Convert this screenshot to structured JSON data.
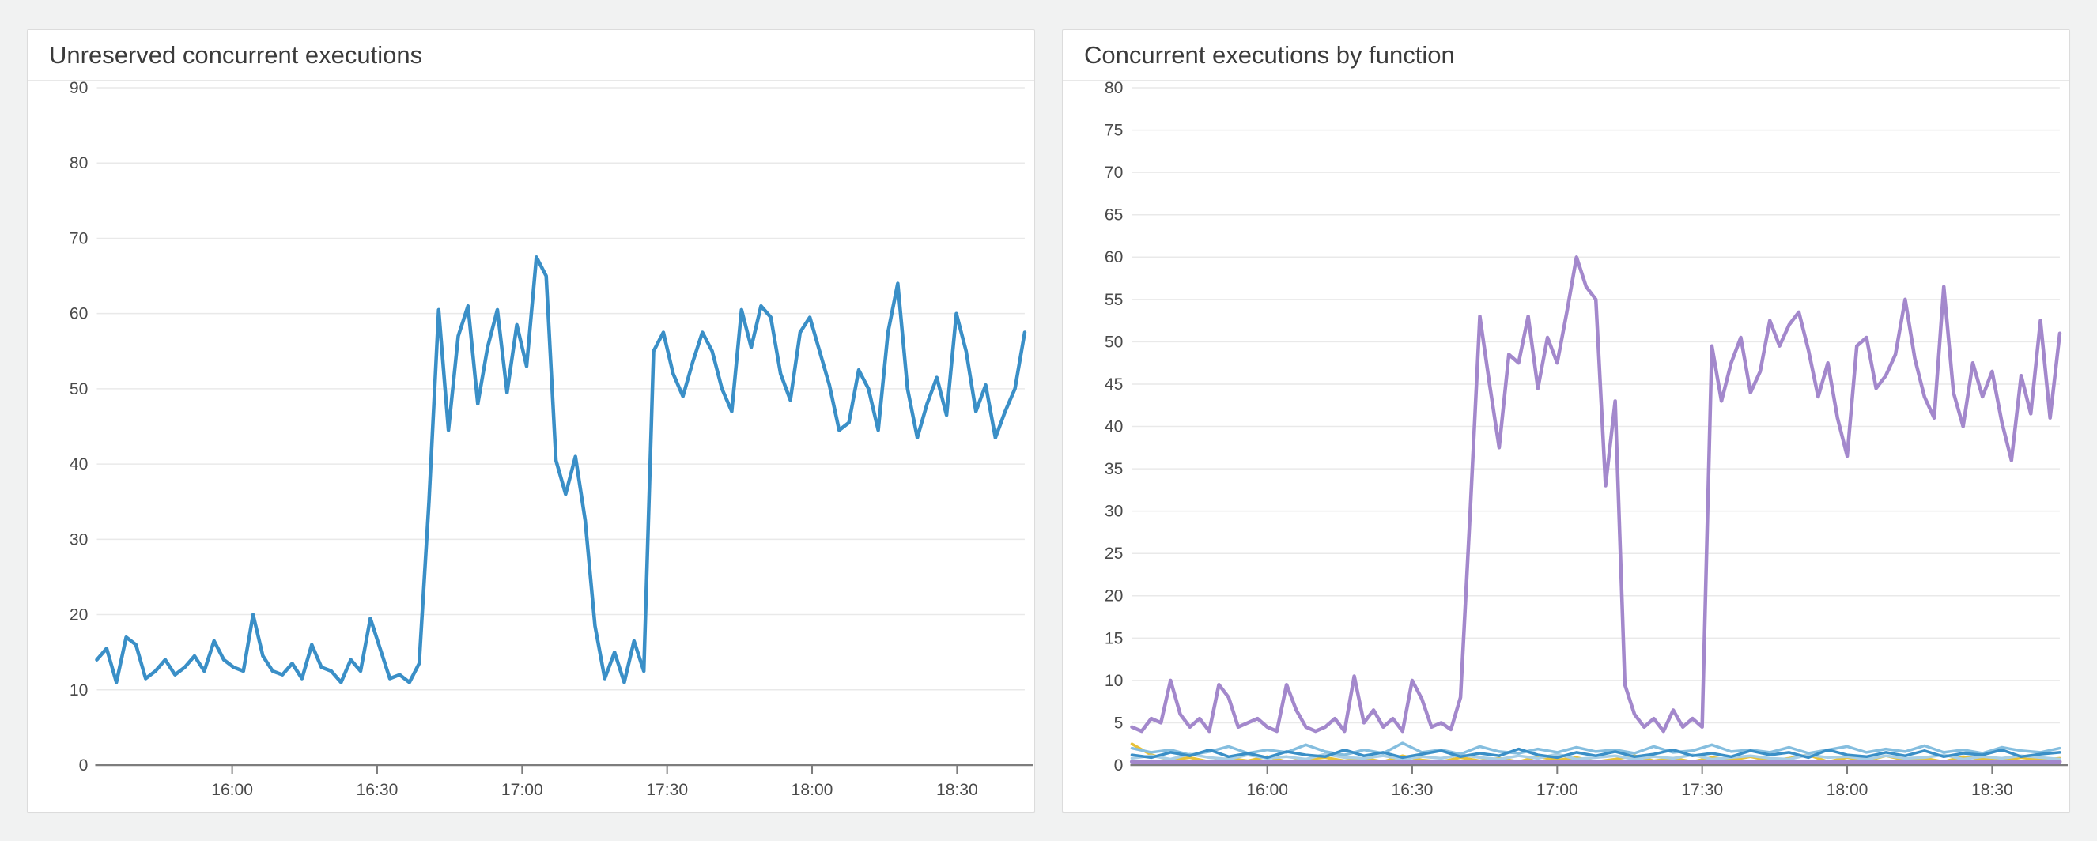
{
  "page": {
    "background": "#f1f2f2"
  },
  "panels": [
    {
      "title": "Unreserved concurrent executions"
    },
    {
      "title": "Concurrent executions by function"
    }
  ],
  "chart_data": [
    {
      "type": "line",
      "title": "Unreserved concurrent executions",
      "xlabel": "",
      "ylabel": "",
      "ylim": [
        0,
        90
      ],
      "y_tick_step": 10,
      "y_tick_labels": [
        "90",
        "80",
        "70",
        "60",
        "50",
        "40",
        "30",
        "20",
        "10",
        "0"
      ],
      "x_tick_labels": [
        "16:00",
        "16:30",
        "17:00",
        "17:30",
        "18:00",
        "18:30"
      ],
      "x_time_start": "15:32",
      "x_step_min": 2,
      "x_point_count": 97,
      "grid": true,
      "legend": "none",
      "grid_color": "#e9e9e9",
      "axis_color": "#7d7d7d",
      "label_color": "#4a4a4a",
      "series": [
        {
          "name": "unreserved-concurrent-executions",
          "color": "#3a8fc7",
          "width": 4.5,
          "values": [
            14,
            15.5,
            11,
            17,
            16,
            11.5,
            12.5,
            14,
            12,
            13,
            14.5,
            12.5,
            16.5,
            14,
            13,
            12.5,
            20,
            14.5,
            12.5,
            12,
            13.5,
            11.5,
            16,
            13,
            12.5,
            11,
            14,
            12.5,
            19.5,
            15.5,
            11.5,
            12,
            11,
            13.5,
            35,
            60.5,
            44.5,
            57,
            61,
            48,
            55.5,
            60.5,
            49.5,
            58.5,
            53,
            67.5,
            65,
            40.5,
            36,
            41,
            32.5,
            18.5,
            11.5,
            15,
            11,
            16.5,
            12.5,
            55,
            57.5,
            52,
            49,
            53.5,
            57.5,
            55,
            50,
            47,
            60.5,
            55.5,
            61,
            59.5,
            52,
            48.5,
            57.5,
            59.5,
            55,
            50.5,
            44.5,
            45.5,
            52.5,
            50,
            44.5,
            57.5,
            64,
            50,
            43.5,
            48,
            51.5,
            46.5,
            60,
            55,
            47,
            50.5,
            43.5,
            47,
            50,
            57.5
          ]
        }
      ]
    },
    {
      "type": "line",
      "title": "Concurrent executions by function",
      "xlabel": "",
      "ylabel": "",
      "ylim": [
        0,
        80
      ],
      "y_tick_step": 5,
      "y_tick_labels": [
        "80",
        "75",
        "70",
        "65",
        "60",
        "55",
        "50",
        "45",
        "40",
        "35",
        "30",
        "25",
        "20",
        "15",
        "10",
        "5",
        "0"
      ],
      "x_tick_labels": [
        "16:00",
        "16:30",
        "17:00",
        "17:30",
        "18:00",
        "18:30"
      ],
      "x_time_start": "15:32",
      "x_step_min": 2,
      "x_point_count": 97,
      "grid": true,
      "legend": "none",
      "grid_color": "#e9e9e9",
      "axis_color": "#7d7d7d",
      "label_color": "#4a4a4a",
      "series": [
        {
          "name": "function-yellow",
          "color": "#e7c23b",
          "width": 3.5,
          "values": [
            2.5,
            1.2,
            0.6,
            0.9,
            0.4,
            0.8,
            0.5,
            1,
            0.4,
            0.7,
            0.9,
            0.5,
            0.8,
            0.4,
            1.1,
            0.6,
            0.4,
            0.9,
            0.5,
            0.8,
            0.4,
            1,
            0.6,
            0.9,
            0.4,
            0.7,
            1.1,
            0.5,
            0.8,
            0.4,
            0.9,
            0.6,
            1,
            0.5,
            0.8,
            1.2,
            0.4,
            0.9,
            0.5,
            1.1,
            0.6,
            0.8,
            0.4,
            1,
            0.7,
            0.5,
            0.9,
            0.6,
            0.8
          ]
        },
        {
          "name": "function-pale-blue",
          "color": "#a9cfe5",
          "width": 3.5,
          "values": [
            0.8,
            1.1,
            0.7,
            1.3,
            0.9,
            0.7,
            1.2,
            0.8,
            1,
            0.7,
            1.3,
            0.9,
            0.8,
            1.1,
            0.7,
            1,
            0.8,
            1.2,
            0.9,
            0.7,
            1.1,
            0.8,
            1.3,
            0.7,
            0.9,
            1.1,
            0.7,
            1,
            0.8,
            1.2,
            0.7,
            0.9,
            1.1,
            0.8,
            0.7,
            1.2,
            0.9,
            1,
            0.7,
            1.1,
            0.8,
            0.9,
            1.2,
            0.7,
            1,
            0.8,
            1.1,
            0.9,
            0.7
          ]
        },
        {
          "name": "function-light-blue",
          "color": "#85bedf",
          "width": 3.5,
          "values": [
            2,
            1.5,
            1.8,
            1.2,
            1.6,
            2.2,
            1.4,
            1.8,
            1.5,
            2.4,
            1.6,
            1.2,
            1.8,
            1.4,
            2.6,
            1.5,
            1.8,
            1.3,
            2.2,
            1.6,
            1.4,
            1.9,
            1.5,
            2.1,
            1.6,
            1.8,
            1.4,
            2.2,
            1.5,
            1.7,
            2.4,
            1.6,
            1.8,
            1.5,
            2.1,
            1.4,
            1.8,
            2.2,
            1.5,
            1.9,
            1.6,
            2.3,
            1.5,
            1.8,
            1.4,
            2.1,
            1.7,
            1.5,
            2
          ]
        },
        {
          "name": "function-blue",
          "color": "#3a8fc7",
          "width": 3.5,
          "values": [
            1.2,
            0.9,
            1.5,
            1.1,
            1.8,
            1,
            1.4,
            0.9,
            1.6,
            1.2,
            1,
            1.8,
            1.1,
            1.5,
            0.9,
            1.3,
            1.7,
            1,
            1.4,
            1.1,
            1.9,
            1.2,
            0.9,
            1.5,
            1.1,
            1.6,
            1,
            1.3,
            1.8,
            1.1,
            1.4,
            1,
            1.7,
            1.2,
            1.5,
            0.9,
            1.8,
            1.2,
            1,
            1.5,
            1.1,
            1.7,
            1,
            1.4,
            1.2,
            1.8,
            1,
            1.3,
            1.5
          ]
        },
        {
          "name": "function-purple-flat",
          "color": "#a388cc",
          "width": 5,
          "values": [
            0.4,
            0.4,
            0.4,
            0.4,
            0.4,
            0.4,
            0.4,
            0.4,
            0.4,
            0.4,
            0.4,
            0.4,
            0.4,
            0.4,
            0.4,
            0.4,
            0.4,
            0.4,
            0.4,
            0.4,
            0.4,
            0.4,
            0.4,
            0.4,
            0.4,
            0.4,
            0.4,
            0.4,
            0.4,
            0.4,
            0.4,
            0.4,
            0.4,
            0.4,
            0.4,
            0.4,
            0.4,
            0.4,
            0.4,
            0.4,
            0.4,
            0.4,
            0.4,
            0.4,
            0.4,
            0.4,
            0.4,
            0.4,
            0.4
          ]
        },
        {
          "name": "function-purple-main",
          "color": "#a388cc",
          "width": 4.5,
          "values": [
            4.5,
            4,
            5.5,
            5,
            10,
            6,
            4.5,
            5.5,
            4,
            9.5,
            8,
            4.5,
            5,
            5.5,
            4.5,
            4,
            9.5,
            6.5,
            4.5,
            4,
            4.5,
            5.5,
            4,
            10.5,
            5,
            6.5,
            4.5,
            5.5,
            4,
            10,
            7.8,
            4.5,
            5,
            4.2,
            8,
            30,
            53,
            45,
            37.5,
            48.5,
            47.5,
            53,
            44.5,
            50.5,
            47.5,
            53.5,
            60,
            56.5,
            55,
            33,
            43,
            9.5,
            6,
            4.5,
            5.5,
            4,
            6.5,
            4.5,
            5.5,
            4.5,
            49.5,
            43,
            47.5,
            50.5,
            44,
            46.5,
            52.5,
            49.5,
            52,
            53.5,
            49,
            43.5,
            47.5,
            41,
            36.5,
            49.5,
            50.5,
            44.5,
            46,
            48.5,
            55,
            48,
            43.5,
            41,
            56.5,
            44,
            40,
            47.5,
            43.5,
            46.5,
            40.5,
            36,
            46,
            41.5,
            52.5,
            41,
            51
          ]
        }
      ]
    }
  ]
}
